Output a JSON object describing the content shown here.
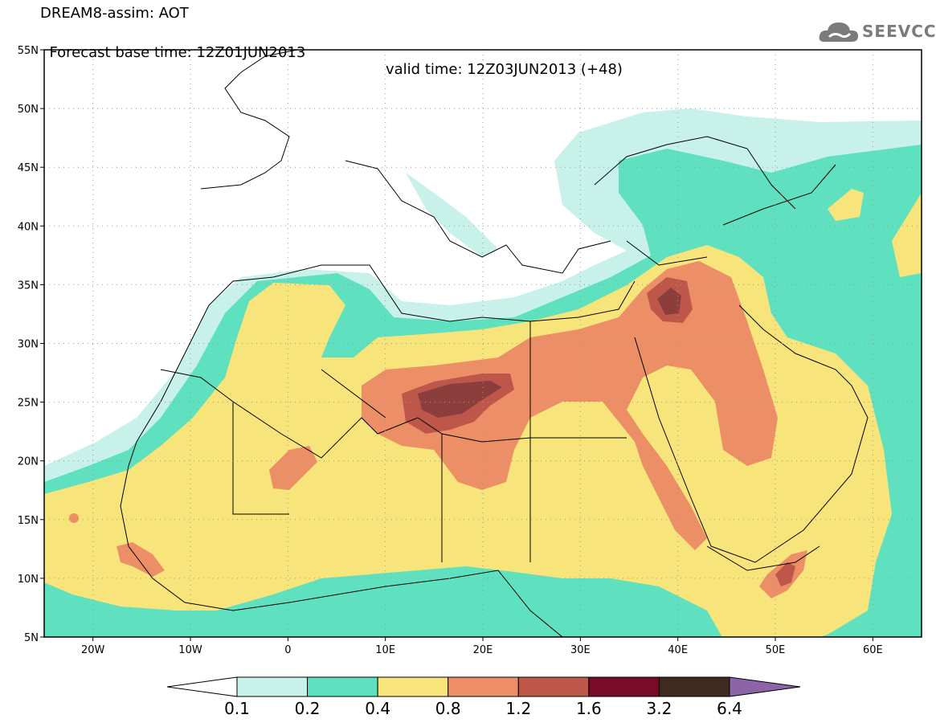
{
  "header": {
    "line1": "DREAM8-assim: AOT",
    "base_time": "Forecast base time: 12Z01JUN2013",
    "valid_time": "valid time: 12Z03JUN2013 (+48)",
    "logo_text": "SEEVCCC"
  },
  "map": {
    "lon_range": [
      -25,
      65
    ],
    "lat_range": [
      5,
      55
    ],
    "lat_ticks": [
      {
        "value": 55,
        "label": "55N"
      },
      {
        "value": 50,
        "label": "50N"
      },
      {
        "value": 45,
        "label": "45N"
      },
      {
        "value": 40,
        "label": "40N"
      },
      {
        "value": 35,
        "label": "35N"
      },
      {
        "value": 30,
        "label": "30N"
      },
      {
        "value": 25,
        "label": "25N"
      },
      {
        "value": 20,
        "label": "20N"
      },
      {
        "value": 15,
        "label": "15N"
      },
      {
        "value": 10,
        "label": "10N"
      },
      {
        "value": 5,
        "label": "5N"
      }
    ],
    "lon_ticks": [
      {
        "value": -20,
        "label": "20W"
      },
      {
        "value": -10,
        "label": "10W"
      },
      {
        "value": 0,
        "label": "0"
      },
      {
        "value": 10,
        "label": "10E"
      },
      {
        "value": 20,
        "label": "20E"
      },
      {
        "value": 30,
        "label": "30E"
      },
      {
        "value": 40,
        "label": "40E"
      },
      {
        "value": 50,
        "label": "50E"
      },
      {
        "value": 60,
        "label": "60E"
      }
    ],
    "colors": {
      "c01": "#c8f1ea",
      "c02": "#5fe0bf",
      "c04": "#f7e47a",
      "c08": "#ec8f67",
      "c12": "#be574a",
      "c16": "#8b3e3b",
      "c32": "#7a0a2a",
      "c64": "#3e2a1f"
    }
  },
  "colorbar": {
    "labels": [
      "0.1",
      "0.2",
      "0.4",
      "0.8",
      "1.2",
      "1.6",
      "3.2",
      "6.4"
    ],
    "colors": [
      "#ffffff",
      "#c8f1ea",
      "#5fe0bf",
      "#f7e47a",
      "#ec8f67",
      "#be574a",
      "#7a0a2a",
      "#3e2a1f",
      "#8e64a8"
    ]
  }
}
